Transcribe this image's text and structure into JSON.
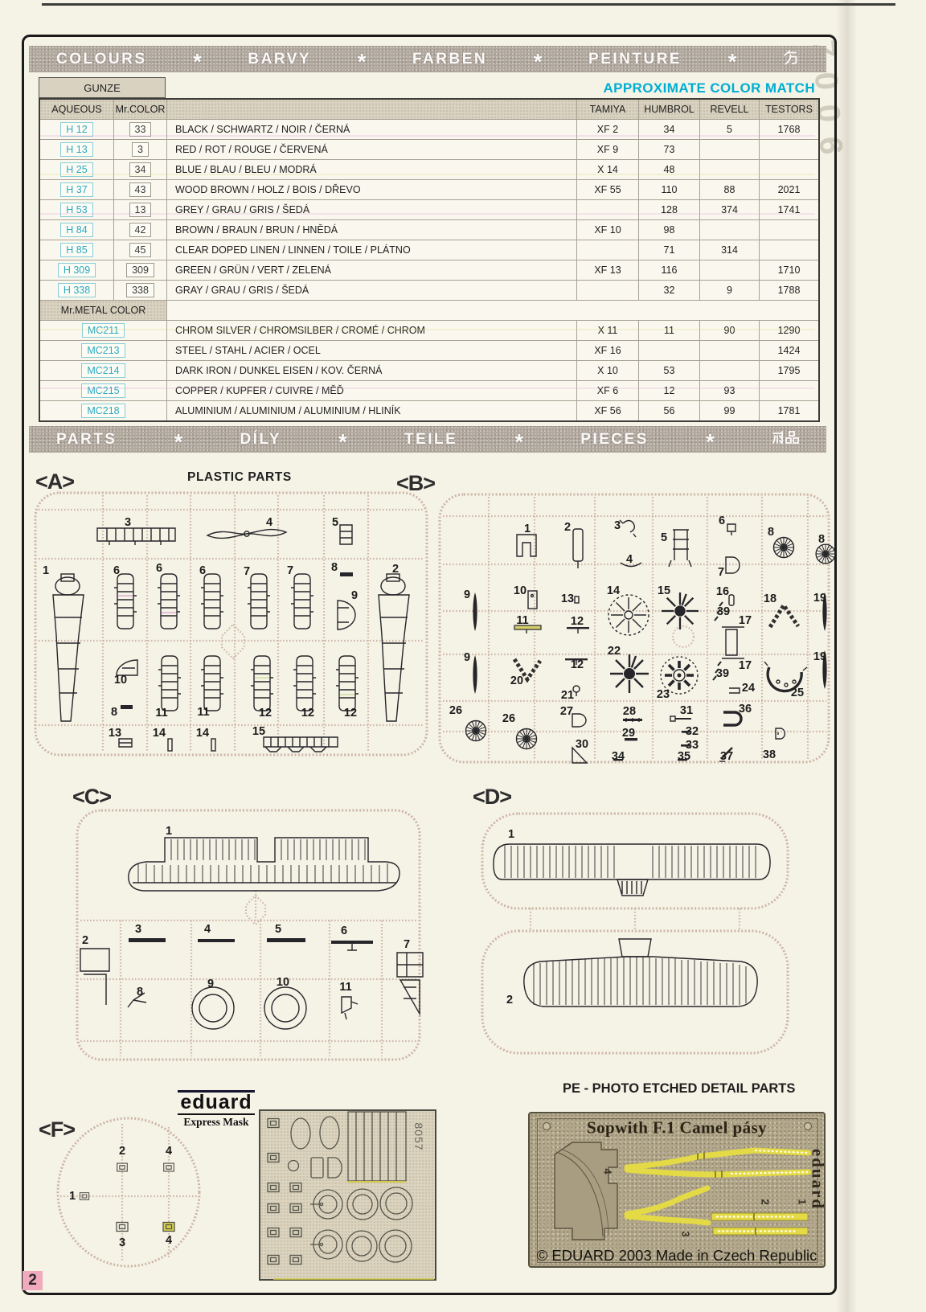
{
  "page": {
    "number": "2",
    "margin_note": "7006"
  },
  "colours_bar": {
    "items": [
      "COLOURS",
      "*",
      "BARVY",
      "*",
      "FARBEN",
      "*",
      "PEINTURE",
      "*"
    ],
    "kanji": "色"
  },
  "parts_bar": {
    "items": [
      "PARTS",
      "*",
      "DÍLY",
      "*",
      "TEILE",
      "*",
      "PIECES",
      "*"
    ],
    "kanji": "部品"
  },
  "color_table": {
    "gunze_label": "GUNZE",
    "match_label": "APPROXIMATE COLOR MATCH",
    "columns": [
      "AQUEOUS",
      "Mr.COLOR",
      "TAMIYA",
      "HUMBROL",
      "REVELL",
      "TESTORS"
    ],
    "rows": [
      {
        "aqueous": "H 12",
        "mr": "33",
        "name": "BLACK / SCHWARTZ / NOIR / ČERNÁ",
        "tamiya": "XF 2",
        "humbrol": "34",
        "revell": "5",
        "testors": "1768"
      },
      {
        "aqueous": "H 13",
        "mr": "3",
        "name": "RED / ROT / ROUGE / ČERVENÁ",
        "tamiya": "XF 9",
        "humbrol": "73",
        "revell": "",
        "testors": ""
      },
      {
        "aqueous": "H 25",
        "mr": "34",
        "name": "BLUE / BLAU / BLEU / MODRÁ",
        "tamiya": "X 14",
        "humbrol": "48",
        "revell": "",
        "testors": ""
      },
      {
        "aqueous": "H 37",
        "mr": "43",
        "name": "WOOD BROWN / HOLZ / BOIS / DŘEVO",
        "tamiya": "XF 55",
        "humbrol": "110",
        "revell": "88",
        "testors": "2021"
      },
      {
        "aqueous": "H 53",
        "mr": "13",
        "name": "GREY / GRAU / GRIS / ŠEDÁ",
        "tamiya": "",
        "humbrol": "128",
        "revell": "374",
        "testors": "1741"
      },
      {
        "aqueous": "H 84",
        "mr": "42",
        "name": "BROWN / BRAUN / BRUN / HNĚDÁ",
        "tamiya": "XF 10",
        "humbrol": "98",
        "revell": "",
        "testors": ""
      },
      {
        "aqueous": "H 85",
        "mr": "45",
        "name": "CLEAR DOPED LINEN / LINNEN / TOILE / PLÁTNO",
        "tamiya": "",
        "humbrol": "71",
        "revell": "314",
        "testors": ""
      },
      {
        "aqueous": "H 309",
        "mr": "309",
        "name": "GREEN / GRÜN / VERT / ZELENÁ",
        "tamiya": "XF 13",
        "humbrol": "116",
        "revell": "",
        "testors": "1710"
      },
      {
        "aqueous": "H 338",
        "mr": "338",
        "name": "GRAY / GRAU / GRIS / ŠEDÁ",
        "tamiya": "",
        "humbrol": "32",
        "revell": "9",
        "testors": "1788"
      }
    ],
    "metal_label": "Mr.METAL COLOR",
    "metal_rows": [
      {
        "code": "MC211",
        "name": "CHROM SILVER / CHROMSILBER / CROMÉ / CHROM",
        "tamiya": "X 11",
        "humbrol": "11",
        "revell": "90",
        "testors": "1290"
      },
      {
        "code": "MC213",
        "name": "STEEL / STAHL / ACIER / OCEL",
        "tamiya": "XF 16",
        "humbrol": "",
        "revell": "",
        "testors": "1424"
      },
      {
        "code": "MC214",
        "name": "DARK IRON / DUNKEL EISEN / KOV. ČERNÁ",
        "tamiya": "X 10",
        "humbrol": "53",
        "revell": "",
        "testors": "1795"
      },
      {
        "code": "MC215",
        "name": "COPPER / KUPFER / CUIVRE / MĚĎ",
        "tamiya": "XF 6",
        "humbrol": "12",
        "revell": "93",
        "testors": ""
      },
      {
        "code": "MC218",
        "name": "ALUMINIUM / ALUMINIUM / ALUMINIUM / HLINÍK",
        "tamiya": "XF 56",
        "humbrol": "56",
        "revell": "99",
        "testors": "1781"
      }
    ]
  },
  "parts_section": {
    "plastic_title": "PLASTIC PARTS",
    "pe_title": "PE - PHOTO ETCHED DETAIL  PARTS",
    "mask_logo": {
      "line1": "eduard",
      "line2": "Express Mask"
    },
    "mask_code": "8057",
    "pe_fret": {
      "title": "Sopwith F.1 Camel pásy",
      "brand": "eduard",
      "copyright": "© EDUARD 2003  Made in Czech Republic",
      "numbers": [
        [
          "4",
          756,
          1457
        ],
        [
          "2",
          952,
          1495
        ],
        [
          "1",
          998,
          1495
        ],
        [
          "3",
          853,
          1535
        ]
      ]
    },
    "sprues": {
      "A": {
        "label": "<A>",
        "parts": [
          [
            "1",
            57,
            710
          ],
          [
            "3",
            159,
            650
          ],
          [
            "4",
            335,
            650
          ],
          [
            "5",
            417,
            650
          ],
          [
            "2",
            492,
            708
          ],
          [
            "6",
            145,
            710
          ],
          [
            "6",
            198,
            707
          ],
          [
            "6",
            252,
            710
          ],
          [
            "7",
            307,
            711
          ],
          [
            "7",
            361,
            710
          ],
          [
            "8",
            416,
            706
          ],
          [
            "9",
            441,
            741
          ],
          [
            "10",
            150,
            846
          ],
          [
            "8",
            142,
            886
          ],
          [
            "11",
            201,
            887
          ],
          [
            "11",
            253,
            886
          ],
          [
            "12",
            330,
            887
          ],
          [
            "12",
            383,
            887
          ],
          [
            "12",
            436,
            887
          ],
          [
            "13",
            143,
            912
          ],
          [
            "14",
            198,
            912
          ],
          [
            "14",
            252,
            912
          ],
          [
            "15",
            322,
            910
          ]
        ]
      },
      "B": {
        "label": "<B>",
        "parts": [
          [
            "1",
            656,
            658
          ],
          [
            "2",
            706,
            656
          ],
          [
            "3",
            768,
            654
          ],
          [
            "4",
            783,
            696
          ],
          [
            "5",
            826,
            669
          ],
          [
            "6",
            898,
            648
          ],
          [
            "7",
            897,
            712
          ],
          [
            "8",
            959,
            662
          ],
          [
            "8",
            1022,
            671
          ],
          [
            "9",
            581,
            740
          ],
          [
            "9",
            581,
            818
          ],
          [
            "10",
            647,
            735
          ],
          [
            "11",
            650,
            772
          ],
          [
            "13",
            706,
            745
          ],
          [
            "12",
            718,
            773
          ],
          [
            "12",
            718,
            827
          ],
          [
            "14",
            763,
            735
          ],
          [
            "15",
            826,
            735
          ],
          [
            "16",
            899,
            736
          ],
          [
            "39",
            900,
            761
          ],
          [
            "39",
            899,
            838
          ],
          [
            "17",
            927,
            772
          ],
          [
            "17",
            927,
            828
          ],
          [
            "18",
            958,
            745
          ],
          [
            "19",
            1020,
            744
          ],
          [
            "19",
            1020,
            817
          ],
          [
            "20",
            643,
            847
          ],
          [
            "21",
            706,
            865
          ],
          [
            "22",
            764,
            810
          ],
          [
            "23",
            825,
            864
          ],
          [
            "24",
            931,
            856
          ],
          [
            "25",
            992,
            862
          ],
          [
            "26",
            567,
            884
          ],
          [
            "26",
            633,
            894
          ],
          [
            "27",
            705,
            885
          ],
          [
            "28",
            783,
            885
          ],
          [
            "29",
            782,
            912
          ],
          [
            "30",
            724,
            926
          ],
          [
            "31",
            854,
            884
          ],
          [
            "32",
            861,
            910
          ],
          [
            "33",
            861,
            927
          ],
          [
            "34",
            769,
            941
          ],
          [
            "35",
            851,
            941
          ],
          [
            "36",
            927,
            882
          ],
          [
            "37",
            904,
            941
          ],
          [
            "38",
            957,
            939
          ]
        ]
      },
      "C": {
        "label": "<C>",
        "parts": [
          [
            "1",
            210,
            1034
          ],
          [
            "2",
            106,
            1170
          ],
          [
            "3",
            172,
            1156
          ],
          [
            "4",
            258,
            1156
          ],
          [
            "5",
            346,
            1156
          ],
          [
            "6",
            428,
            1158
          ],
          [
            "7",
            506,
            1175
          ],
          [
            "8",
            174,
            1234
          ],
          [
            "9",
            262,
            1224
          ],
          [
            "10",
            352,
            1222
          ],
          [
            "11",
            430,
            1228
          ]
        ]
      },
      "D": {
        "label": "<D>",
        "parts": [
          [
            "1",
            636,
            1038
          ],
          [
            "2",
            634,
            1244
          ]
        ]
      },
      "F": {
        "label": "<F>",
        "parts": [
          [
            "2",
            152,
            1432
          ],
          [
            "4",
            210,
            1432
          ],
          [
            "1",
            90,
            1488
          ],
          [
            "3",
            152,
            1546
          ],
          [
            "4",
            210,
            1543
          ]
        ]
      }
    }
  }
}
